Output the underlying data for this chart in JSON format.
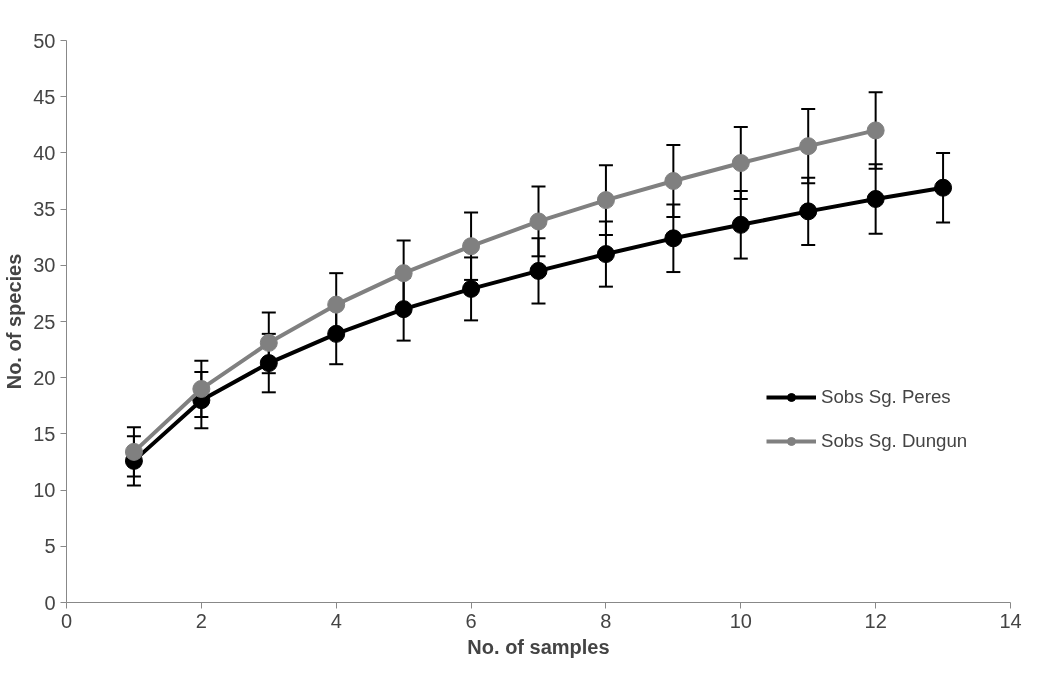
{
  "chart_data": {
    "type": "line",
    "xlabel": "No. of samples",
    "ylabel": "No. of species",
    "xlim": [
      0,
      14
    ],
    "xticks": [
      0,
      2,
      4,
      6,
      8,
      10,
      12,
      14
    ],
    "ylim": [
      0,
      50
    ],
    "yticks": [
      0,
      5,
      10,
      15,
      20,
      25,
      30,
      35,
      40,
      45,
      50
    ],
    "grid": false,
    "legend": "right",
    "marker": "circle",
    "line_style": "solid",
    "series": [
      {
        "name": "Sobs Sg. Peres",
        "color": "#000000",
        "x": [
          1,
          2,
          3,
          4,
          5,
          6,
          7,
          8,
          9,
          10,
          11,
          12,
          13
        ],
        "values": [
          12.6,
          18.0,
          21.3,
          23.9,
          26.1,
          27.9,
          29.5,
          31.0,
          32.4,
          33.6,
          34.8,
          35.9,
          36.9
        ],
        "errors": [
          2.2,
          2.5,
          2.6,
          2.7,
          2.8,
          2.8,
          2.9,
          2.9,
          3.0,
          3.0,
          3.0,
          3.1,
          3.1
        ]
      },
      {
        "name": "Sobs Sg. Dungun",
        "color": "#808080",
        "x": [
          1,
          2,
          3,
          4,
          5,
          6,
          7,
          8,
          9,
          10,
          11,
          12
        ],
        "values": [
          13.4,
          19.0,
          23.1,
          26.5,
          29.3,
          31.7,
          33.9,
          35.8,
          37.5,
          39.1,
          40.6,
          42.0
        ],
        "errors": [
          2.2,
          2.5,
          2.7,
          2.8,
          2.9,
          3.0,
          3.1,
          3.1,
          3.2,
          3.2,
          3.3,
          3.4
        ]
      }
    ]
  }
}
